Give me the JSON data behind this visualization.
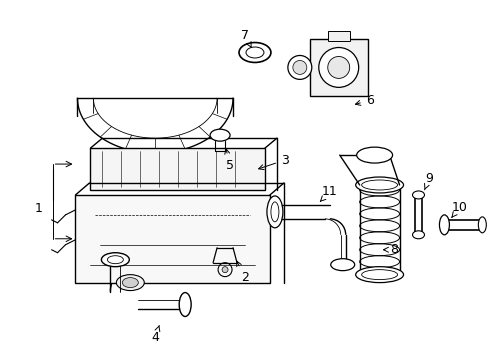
{
  "background_color": "#ffffff",
  "line_color": "#000000",
  "fig_width": 4.89,
  "fig_height": 3.6,
  "dpi": 100,
  "font_size": 9,
  "lw_main": 1.0,
  "lw_thin": 0.6
}
